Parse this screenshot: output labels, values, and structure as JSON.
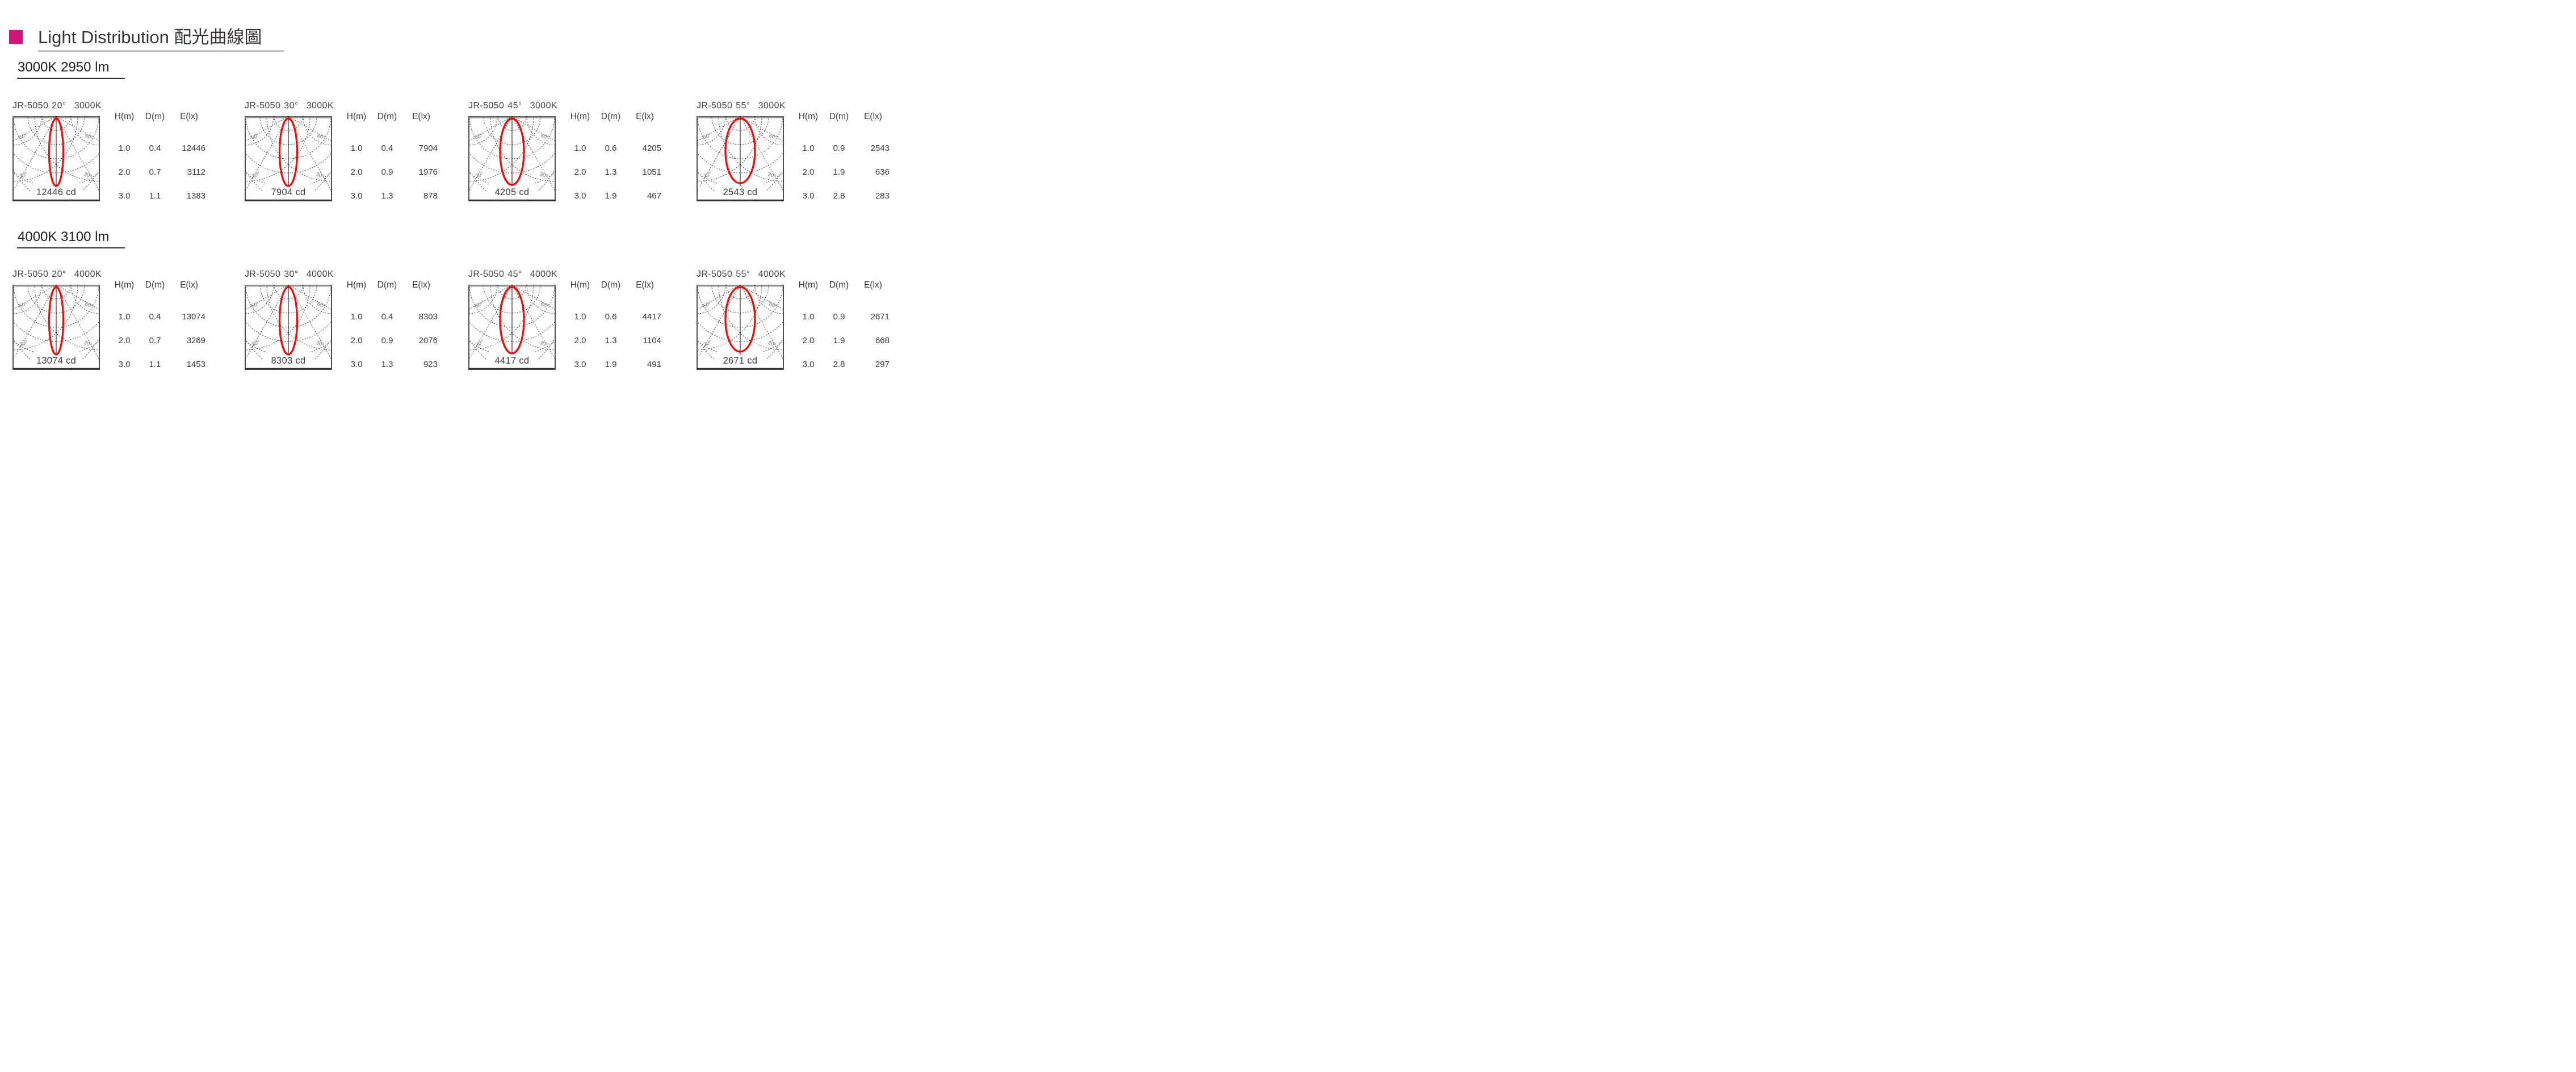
{
  "page": {
    "title": "Light Distribution 配光曲線圖",
    "accent_color": "#d2137b",
    "beam_color": "#e9100e"
  },
  "table_headers": [
    "H(m)",
    "D(m)",
    "E(lx)"
  ],
  "polar_labels": {
    "upper": "60°",
    "lower": "30°"
  },
  "sections": [
    {
      "heading": "3000K 2950 lm",
      "charts": [
        {
          "model": "JR-5050",
          "angle": "20°",
          "cct": "3000K",
          "beam_angle": 20,
          "cd_label": "12446 cd",
          "rows": [
            [
              "1.0",
              "0.4",
              "12446"
            ],
            [
              "2.0",
              "0.7",
              "3112"
            ],
            [
              "3.0",
              "1.1",
              "1383"
            ]
          ]
        },
        {
          "model": "JR-5050",
          "angle": "30°",
          "cct": "3000K",
          "beam_angle": 30,
          "cd_label": "7904 cd",
          "rows": [
            [
              "1.0",
              "0.4",
              "7904"
            ],
            [
              "2.0",
              "0.9",
              "1976"
            ],
            [
              "3.0",
              "1.3",
              "878"
            ]
          ]
        },
        {
          "model": "JR-5050",
          "angle": "45°",
          "cct": "3000K",
          "beam_angle": 45,
          "cd_label": "4205 cd",
          "rows": [
            [
              "1.0",
              "0.6",
              "4205"
            ],
            [
              "2.0",
              "1.3",
              "1051"
            ],
            [
              "3.0",
              "1.9",
              "467"
            ]
          ]
        },
        {
          "model": "JR-5050",
          "angle": "55°",
          "cct": "3000K",
          "beam_angle": 55,
          "cd_label": "2543 cd",
          "rows": [
            [
              "1.0",
              "0.9",
              "2543"
            ],
            [
              "2.0",
              "1.9",
              "636"
            ],
            [
              "3.0",
              "2.8",
              "283"
            ]
          ]
        }
      ]
    },
    {
      "heading": "4000K 3100 lm",
      "charts": [
        {
          "model": "JR-5050",
          "angle": "20°",
          "cct": "4000K",
          "beam_angle": 20,
          "cd_label": "13074 cd",
          "rows": [
            [
              "1.0",
              "0.4",
              "13074"
            ],
            [
              "2.0",
              "0.7",
              "3269"
            ],
            [
              "3.0",
              "1.1",
              "1453"
            ]
          ]
        },
        {
          "model": "JR-5050",
          "angle": "30°",
          "cct": "4000K",
          "beam_angle": 30,
          "cd_label": "8303 cd",
          "rows": [
            [
              "1.0",
              "0.4",
              "8303"
            ],
            [
              "2.0",
              "0.9",
              "2076"
            ],
            [
              "3.0",
              "1.3",
              "923"
            ]
          ]
        },
        {
          "model": "JR-5050",
          "angle": "45°",
          "cct": "4000K",
          "beam_angle": 45,
          "cd_label": "4417 cd",
          "rows": [
            [
              "1.0",
              "0.6",
              "4417"
            ],
            [
              "2.0",
              "1.3",
              "1104"
            ],
            [
              "3.0",
              "1.9",
              "491"
            ]
          ]
        },
        {
          "model": "JR-5050",
          "angle": "55°",
          "cct": "4000K",
          "beam_angle": 55,
          "cd_label": "2671 cd",
          "rows": [
            [
              "1.0",
              "0.9",
              "2671"
            ],
            [
              "2.0",
              "1.9",
              "668"
            ],
            [
              "3.0",
              "2.8",
              "297"
            ]
          ]
        }
      ]
    }
  ],
  "chart_data": [
    {
      "type": "line",
      "polar": true,
      "title": "JR-5050 20° 3000K",
      "beam_angle_deg": 20,
      "peak_intensity_cd": 12446,
      "grid_angle_labels": [
        "60°",
        "30°"
      ],
      "table": {
        "headers": [
          "H(m)",
          "D(m)",
          "E(lx)"
        ],
        "rows": [
          [
            1.0,
            0.4,
            12446
          ],
          [
            2.0,
            0.7,
            3112
          ],
          [
            3.0,
            1.1,
            1383
          ]
        ]
      }
    },
    {
      "type": "line",
      "polar": true,
      "title": "JR-5050 30° 3000K",
      "beam_angle_deg": 30,
      "peak_intensity_cd": 7904,
      "grid_angle_labels": [
        "60°",
        "30°"
      ],
      "table": {
        "headers": [
          "H(m)",
          "D(m)",
          "E(lx)"
        ],
        "rows": [
          [
            1.0,
            0.4,
            7904
          ],
          [
            2.0,
            0.9,
            1976
          ],
          [
            3.0,
            1.3,
            878
          ]
        ]
      }
    },
    {
      "type": "line",
      "polar": true,
      "title": "JR-5050 45° 3000K",
      "beam_angle_deg": 45,
      "peak_intensity_cd": 4205,
      "grid_angle_labels": [
        "60°",
        "30°"
      ],
      "table": {
        "headers": [
          "H(m)",
          "D(m)",
          "E(lx)"
        ],
        "rows": [
          [
            1.0,
            0.6,
            4205
          ],
          [
            2.0,
            1.3,
            1051
          ],
          [
            3.0,
            1.9,
            467
          ]
        ]
      }
    },
    {
      "type": "line",
      "polar": true,
      "title": "JR-5050 55° 3000K",
      "beam_angle_deg": 55,
      "peak_intensity_cd": 2543,
      "grid_angle_labels": [
        "60°",
        "30°"
      ],
      "table": {
        "headers": [
          "H(m)",
          "D(m)",
          "E(lx)"
        ],
        "rows": [
          [
            1.0,
            0.9,
            2543
          ],
          [
            2.0,
            1.9,
            636
          ],
          [
            3.0,
            2.8,
            283
          ]
        ]
      }
    },
    {
      "type": "line",
      "polar": true,
      "title": "JR-5050 20° 4000K",
      "beam_angle_deg": 20,
      "peak_intensity_cd": 13074,
      "grid_angle_labels": [
        "60°",
        "30°"
      ],
      "table": {
        "headers": [
          "H(m)",
          "D(m)",
          "E(lx)"
        ],
        "rows": [
          [
            1.0,
            0.4,
            13074
          ],
          [
            2.0,
            0.7,
            3269
          ],
          [
            3.0,
            1.1,
            1453
          ]
        ]
      }
    },
    {
      "type": "line",
      "polar": true,
      "title": "JR-5050 30° 4000K",
      "beam_angle_deg": 30,
      "peak_intensity_cd": 8303,
      "grid_angle_labels": [
        "60°",
        "30°"
      ],
      "table": {
        "headers": [
          "H(m)",
          "D(m)",
          "E(lx)"
        ],
        "rows": [
          [
            1.0,
            0.4,
            8303
          ],
          [
            2.0,
            0.9,
            2076
          ],
          [
            3.0,
            1.3,
            923
          ]
        ]
      }
    },
    {
      "type": "line",
      "polar": true,
      "title": "JR-5050 45° 4000K",
      "beam_angle_deg": 45,
      "peak_intensity_cd": 4417,
      "grid_angle_labels": [
        "60°",
        "30°"
      ],
      "table": {
        "headers": [
          "H(m)",
          "D(m)",
          "E(lx)"
        ],
        "rows": [
          [
            1.0,
            0.6,
            4417
          ],
          [
            2.0,
            1.3,
            1104
          ],
          [
            3.0,
            1.9,
            491
          ]
        ]
      }
    },
    {
      "type": "line",
      "polar": true,
      "title": "JR-5050 55° 4000K",
      "beam_angle_deg": 55,
      "peak_intensity_cd": 2671,
      "grid_angle_labels": [
        "60°",
        "30°"
      ],
      "table": {
        "headers": [
          "H(m)",
          "D(m)",
          "E(lx)"
        ],
        "rows": [
          [
            1.0,
            0.9,
            2671
          ],
          [
            2.0,
            1.9,
            668
          ],
          [
            3.0,
            2.8,
            297
          ]
        ]
      }
    }
  ]
}
